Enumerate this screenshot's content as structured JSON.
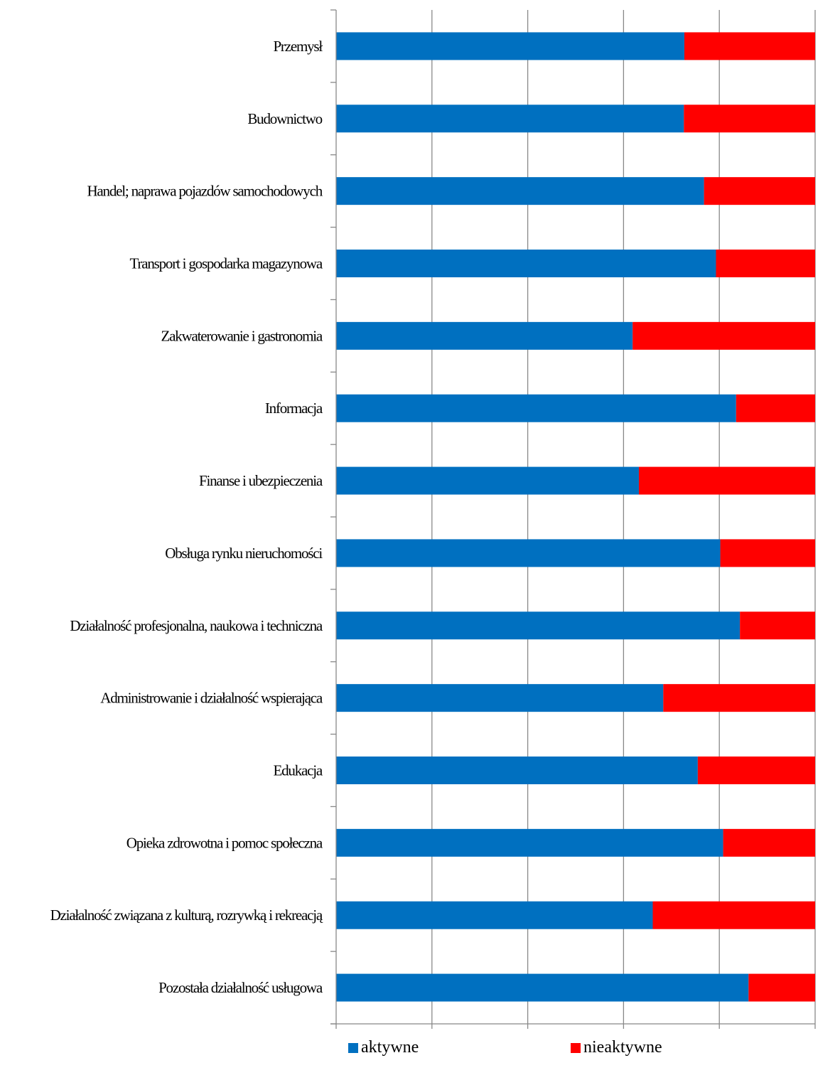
{
  "chart_data": {
    "type": "bar",
    "orientation": "horizontal",
    "stacked": "percent",
    "categories": [
      "Przemysł",
      "Budownictwo",
      "Handel; naprawa pojazdów samochodowych",
      "Transport i gospodarka magazynowa",
      "Zakwaterowanie i gastronomia",
      "Informacja",
      "Finanse i ubezpieczenia",
      "Obsługa rynku nieruchomości",
      "Działalność profesjonalna, naukowa i techniczna",
      "Administrowanie i działalność wspierająca",
      "Edukacja",
      "Opieka zdrowotna i pomoc społeczna",
      "Działalność związana z kulturą, rozrywką i rekreacją",
      "Pozostała działalność usługowa"
    ],
    "series": [
      {
        "name": "aktywne",
        "color": "#0070C0",
        "values": [
          72.7,
          72.6,
          76.8,
          79.3,
          61.9,
          83.5,
          63.2,
          80.2,
          84.3,
          68.3,
          75.5,
          80.8,
          66.1,
          86.1
        ]
      },
      {
        "name": "nieaktywne",
        "color": "#FF0000",
        "values": [
          27.3,
          27.4,
          23.2,
          20.7,
          38.1,
          16.5,
          36.8,
          19.8,
          15.7,
          31.7,
          24.5,
          19.2,
          33.9,
          13.9
        ]
      }
    ],
    "x_ticks": [
      "0%",
      "20%",
      "40%",
      "60%",
      "80%",
      "100%"
    ],
    "xlim": [
      0,
      100
    ],
    "grid": "vertical",
    "legend_position": "bottom",
    "title": "",
    "xlabel": "",
    "ylabel": ""
  }
}
